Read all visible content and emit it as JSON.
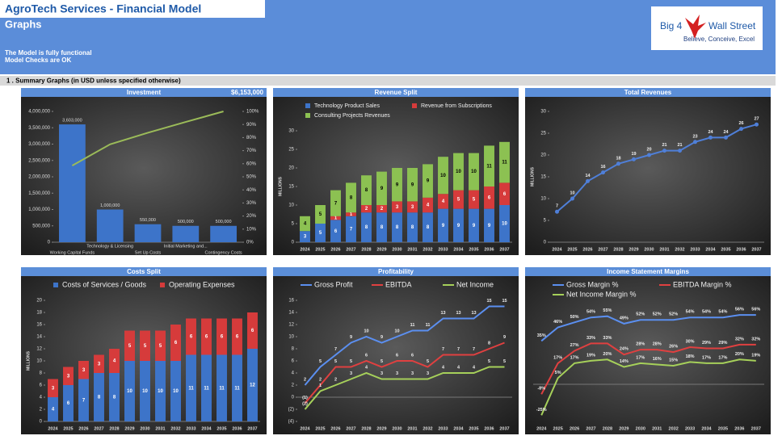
{
  "header": {
    "title": "AgroTech Services - Financial Model",
    "subtitle": "Graphs",
    "status": [
      "The Model is fully functional",
      "Model Checks are OK"
    ],
    "logo": {
      "name": [
        "Big 4",
        "Wall Street"
      ],
      "tagline": "Believe, Conceive, Excel"
    },
    "section": "1 . Summary Graphs (in USD unless specified otherwise)"
  },
  "chart_data": [
    {
      "type": "bar",
      "title": "Investment",
      "total": "$6,153,000",
      "categories": [
        "Working Capital Funds",
        "Technology & Licensing",
        "Set Up Costs",
        "Initial Marketing and...",
        "Contingency Costs"
      ],
      "series": [
        {
          "color": "#3d74c9",
          "values": [
            3603000,
            1000000,
            550000,
            500000,
            500000
          ],
          "value_labels": [
            "3,603,000",
            "1,000,000",
            "550,000",
            "500,000",
            "500,000"
          ]
        },
        {
          "type": "line",
          "axis": "y2",
          "color": "#9bbb59",
          "values": [
            58.6,
            74.8,
            83.7,
            91.9,
            100
          ]
        }
      ],
      "ylim": [
        0,
        4000000
      ],
      "yticks": [
        0,
        {
          "value": 500000,
          "label": "500,000"
        },
        {
          "value": 1000000,
          "label": "1,000,000"
        },
        {
          "value": 1500000,
          "label": "1,500,000"
        },
        {
          "value": 2000000,
          "label": "2,000,000"
        },
        {
          "value": 2500000,
          "label": "2,500,000"
        },
        {
          "value": 3000000,
          "label": "3,000,000"
        },
        {
          "value": 3500000,
          "label": "3,500,000"
        },
        {
          "value": 4000000,
          "label": "4,000,000"
        }
      ],
      "y2lim": [
        0,
        100
      ],
      "y2ticks": [
        {
          "value": 0,
          "label": "0%"
        },
        {
          "value": 10,
          "label": "10%"
        },
        {
          "value": 20,
          "label": "20%"
        },
        {
          "value": 30,
          "label": "30%"
        },
        {
          "value": 40,
          "label": "40%"
        },
        {
          "value": 50,
          "label": "50%"
        },
        {
          "value": 60,
          "label": "60%"
        },
        {
          "value": 70,
          "label": "70%"
        },
        {
          "value": 80,
          "label": "80%"
        },
        {
          "value": 90,
          "label": "90%"
        },
        {
          "value": 100,
          "label": "100%"
        }
      ]
    },
    {
      "type": "stacked_bar",
      "title": "Revenue Split",
      "y_label": "MILLIONS",
      "categories": [
        "2024",
        "2025",
        "2026",
        "2027",
        "2028",
        "2029",
        "2030",
        "2031",
        "2032",
        "2033",
        "2034",
        "2035",
        "2036",
        "2037"
      ],
      "series": [
        {
          "name": "Technology Product Sales",
          "color": "#3d74c9",
          "values": [
            3,
            5,
            6,
            7,
            8,
            8,
            8,
            8,
            8,
            9,
            9,
            9,
            9,
            10
          ]
        },
        {
          "name": "Revenue from Subscriptions",
          "color": "#d63b3b",
          "values": [
            0,
            0,
            1,
            1,
            2,
            2,
            3,
            3,
            4,
            4,
            5,
            5,
            6,
            6
          ]
        },
        {
          "name": "Consulting Projects Revenues",
          "color": "#8cc152",
          "values": [
            4,
            5,
            7,
            8,
            8,
            9,
            9,
            9,
            9,
            10,
            10,
            10,
            11,
            11
          ]
        }
      ],
      "ylim": [
        0,
        30
      ],
      "yticks": [
        0,
        5,
        10,
        15,
        20,
        25,
        30
      ]
    },
    {
      "type": "line",
      "title": "Total Revenues",
      "y_label": "MILLIONS",
      "markers": true,
      "categories": [
        "2024",
        "2025",
        "2026",
        "2027",
        "2028",
        "2029",
        "2030",
        "2031",
        "2032",
        "2033",
        "2034",
        "2035",
        "2036",
        "2037"
      ],
      "series": [
        {
          "color": "#4f7fd8",
          "values": [
            7,
            10,
            14,
            16,
            18,
            19,
            20,
            21,
            21,
            23,
            24,
            24,
            26,
            27
          ]
        }
      ],
      "ylim": [
        0,
        30
      ],
      "yticks": [
        0,
        5,
        10,
        15,
        20,
        25,
        30
      ]
    },
    {
      "type": "stacked_bar",
      "title": "Costs Split",
      "y_label": "MILLIONS",
      "categories": [
        "2024",
        "2025",
        "2026",
        "2027",
        "2028",
        "2029",
        "2030",
        "2031",
        "2032",
        "2033",
        "2034",
        "2035",
        "2036",
        "2037"
      ],
      "series": [
        {
          "name": "Costs of Services / Goods",
          "color": "#3d74c9",
          "values": [
            4,
            6,
            7,
            8,
            8,
            10,
            10,
            10,
            10,
            11,
            11,
            11,
            11,
            12
          ]
        },
        {
          "name": "Operating Expenses",
          "color": "#d63b3b",
          "values": [
            3,
            3,
            3,
            3,
            4,
            5,
            5,
            5,
            6,
            6,
            6,
            6,
            6,
            6
          ]
        }
      ],
      "ylim": [
        0,
        20
      ],
      "yticks": [
        0,
        2,
        4,
        6,
        8,
        10,
        12,
        14,
        16,
        18,
        20
      ]
    },
    {
      "type": "line",
      "title": "Profitability",
      "categories": [
        "2024",
        "2025",
        "2026",
        "2027",
        "2028",
        "2029",
        "2030",
        "2031",
        "2032",
        "2033",
        "2034",
        "2035",
        "2036",
        "2037"
      ],
      "series": [
        {
          "name": "Gross Profit",
          "color": "#5b8ff0",
          "values": [
            2,
            5,
            7,
            9,
            10,
            9,
            10,
            11,
            11,
            13,
            13,
            13,
            15,
            15
          ]
        },
        {
          "name": "EBITDA",
          "color": "#e04040",
          "values": [
            -1,
            2,
            5,
            5,
            6,
            5,
            6,
            6,
            5,
            7,
            7,
            7,
            8,
            9
          ],
          "value_labels": [
            "(1)",
            "2",
            "5",
            "5",
            "6",
            "5",
            "6",
            "6",
            "5",
            "7",
            "7",
            "7",
            "8",
            "9"
          ]
        },
        {
          "name": "Net Income",
          "color": "#a6d05a",
          "values": [
            -2,
            1,
            2,
            3,
            4,
            3,
            3,
            3,
            3,
            4,
            4,
            4,
            5,
            5
          ],
          "value_labels": [
            "(2)",
            "1",
            "2",
            "3",
            "4",
            "3",
            "3",
            "3",
            "3",
            "4",
            "4",
            "4",
            "5",
            "5"
          ]
        }
      ],
      "ylim": [
        -4,
        16
      ],
      "yticks": [
        {
          "value": -4,
          "label": "(4)"
        },
        {
          "value": -2,
          "label": "(2)"
        },
        0,
        2,
        4,
        6,
        8,
        10,
        12,
        14,
        16
      ]
    },
    {
      "type": "line",
      "title": "Income Statement Margins",
      "categories": [
        "2024",
        "2025",
        "2026",
        "2027",
        "2028",
        "2029",
        "2030",
        "2031",
        "2032",
        "2033",
        "2034",
        "2035",
        "2036",
        "2037"
      ],
      "series": [
        {
          "name": "Gross Margin %",
          "color": "#5b8ff0",
          "values": [
            35,
            46,
            50,
            54,
            55,
            49,
            52,
            52,
            52,
            54,
            54,
            54,
            56,
            56
          ],
          "value_labels": [
            "35%",
            "46%",
            "50%",
            "54%",
            "55%",
            "49%",
            "52%",
            "52%",
            "52%",
            "54%",
            "54%",
            "54%",
            "56%",
            "56%"
          ]
        },
        {
          "name": "EBITDA Margin %",
          "color": "#e04040",
          "values": [
            -8,
            17,
            27,
            33,
            33,
            24,
            28,
            28,
            26,
            30,
            29,
            29,
            32,
            32
          ],
          "value_labels": [
            "-8%",
            "17%",
            "27%",
            "33%",
            "33%",
            "24%",
            "28%",
            "28%",
            "26%",
            "30%",
            "29%",
            "29%",
            "32%",
            "32%"
          ]
        },
        {
          "name": "Net Income Margin %",
          "color": "#a6d05a",
          "values": [
            -25,
            5,
            17,
            19,
            20,
            14,
            17,
            16,
            15,
            18,
            17,
            17,
            20,
            19
          ],
          "value_labels": [
            "-25%",
            "5%",
            "17%",
            "19%",
            "20%",
            "14%",
            "17%",
            "16%",
            "15%",
            "18%",
            "17%",
            "17%",
            "20%",
            "19%"
          ]
        }
      ],
      "ylim": [
        -30,
        60
      ]
    }
  ]
}
